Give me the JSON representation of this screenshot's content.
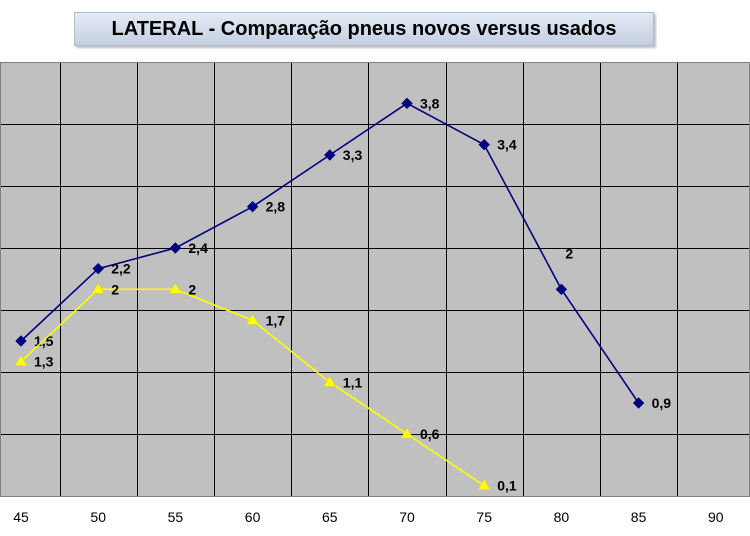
{
  "chart_data": {
    "type": "line",
    "title": "LATERAL  - Comparação pneus novos versus usados",
    "xlabel": "",
    "ylabel": "",
    "x_ticks": [
      45,
      50,
      55,
      60,
      65,
      70,
      75,
      80,
      85,
      90
    ],
    "xlim": [
      45,
      90
    ],
    "ylim": [
      0,
      4.2
    ],
    "grid": true,
    "legend": "none",
    "series": [
      {
        "color": "#000080",
        "marker": "diamond",
        "x": [
          45,
          50,
          55,
          60,
          65,
          70,
          75,
          80,
          85
        ],
        "values": [
          1.5,
          2.2,
          2.4,
          2.8,
          3.3,
          3.8,
          3.4,
          2,
          0.9
        ],
        "labels": [
          "1,5",
          "2,2",
          "2,4",
          "2,8",
          "3,3",
          "3,8",
          "3,4",
          "2",
          "0,9"
        ]
      },
      {
        "color": "#ffff00",
        "marker": "triangle",
        "x": [
          45,
          50,
          55,
          60,
          65,
          70,
          75
        ],
        "values": [
          1.3,
          2,
          2,
          1.7,
          1.1,
          0.6,
          0.1
        ],
        "labels": [
          "1,3",
          "2",
          "2",
          "1,7",
          "1,1",
          "0,6",
          "0,1"
        ]
      }
    ]
  }
}
